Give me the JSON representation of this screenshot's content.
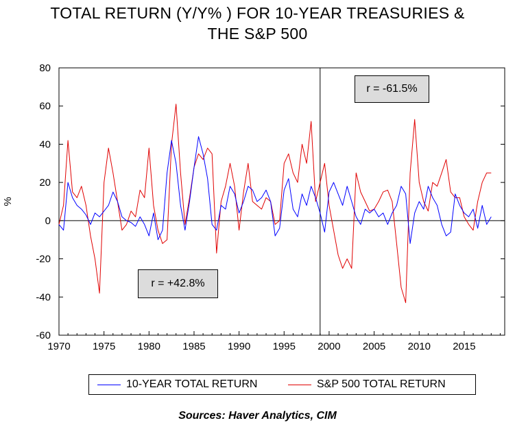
{
  "chart_data": {
    "type": "line",
    "title_line1": "TOTAL RETURN (Y/Y% ) FOR 10-YEAR TREASURIES &",
    "title_line2": "THE S&P 500",
    "ylabel": "%",
    "ylim": [
      -60,
      80
    ],
    "xlim": [
      1970,
      2019.5
    ],
    "yticks": [
      80,
      60,
      40,
      20,
      0,
      -20,
      -40,
      -60
    ],
    "xticks": [
      1970,
      1975,
      1980,
      1985,
      1990,
      1995,
      2000,
      2005,
      2010,
      2015
    ],
    "vertical_line_x": 1999,
    "legend_position": "bottom",
    "annotations": [
      {
        "text": "r = -61.5%"
      },
      {
        "text": "r = +42.8%"
      }
    ],
    "source": "Sources:  Haver Analytics, CIM",
    "series": [
      {
        "name": "10-YEAR TOTAL RETURN",
        "color": "#0000ff",
        "x": [
          1970.0,
          1970.5,
          1971.0,
          1971.5,
          1972.0,
          1972.5,
          1973.0,
          1973.5,
          1974.0,
          1974.5,
          1975.0,
          1975.5,
          1976.0,
          1976.5,
          1977.0,
          1977.5,
          1978.0,
          1978.5,
          1979.0,
          1979.5,
          1980.0,
          1980.5,
          1981.0,
          1981.5,
          1982.0,
          1982.5,
          1983.0,
          1983.5,
          1984.0,
          1984.5,
          1985.0,
          1985.5,
          1986.0,
          1986.5,
          1987.0,
          1987.5,
          1988.0,
          1988.5,
          1989.0,
          1989.5,
          1990.0,
          1990.5,
          1991.0,
          1991.5,
          1992.0,
          1992.5,
          1993.0,
          1993.5,
          1994.0,
          1994.5,
          1995.0,
          1995.5,
          1996.0,
          1996.5,
          1997.0,
          1997.5,
          1998.0,
          1998.5,
          1999.0,
          1999.5,
          2000.0,
          2000.5,
          2001.0,
          2001.5,
          2002.0,
          2002.5,
          2003.0,
          2003.5,
          2004.0,
          2004.5,
          2005.0,
          2005.5,
          2006.0,
          2006.5,
          2007.0,
          2007.5,
          2008.0,
          2008.5,
          2009.0,
          2009.5,
          2010.0,
          2010.5,
          2011.0,
          2011.5,
          2012.0,
          2012.5,
          2013.0,
          2013.5,
          2014.0,
          2014.5,
          2015.0,
          2015.5,
          2016.0,
          2016.5,
          2017.0,
          2017.5,
          2018.0
        ],
        "values": [
          -2,
          -5,
          20,
          12,
          8,
          6,
          3,
          -2,
          4,
          2,
          5,
          8,
          15,
          10,
          2,
          0,
          -1,
          -3,
          2,
          -2,
          -8,
          4,
          -10,
          -5,
          25,
          42,
          30,
          8,
          -5,
          10,
          28,
          44,
          35,
          22,
          -2,
          -5,
          8,
          6,
          18,
          14,
          4,
          10,
          18,
          16,
          10,
          12,
          16,
          10,
          -8,
          -4,
          16,
          22,
          6,
          2,
          14,
          8,
          18,
          12,
          4,
          -6,
          15,
          20,
          14,
          8,
          18,
          10,
          2,
          -2,
          6,
          4,
          6,
          2,
          4,
          -2,
          4,
          8,
          18,
          14,
          -12,
          4,
          10,
          6,
          18,
          12,
          8,
          -2,
          -8,
          -6,
          14,
          8,
          4,
          2,
          6,
          -4,
          8,
          -2,
          2
        ]
      },
      {
        "name": "S&P 500 TOTAL RETURN",
        "color": "#e00000",
        "x": [
          1970.0,
          1970.5,
          1971.0,
          1971.5,
          1972.0,
          1972.5,
          1973.0,
          1973.5,
          1974.0,
          1974.5,
          1975.0,
          1975.5,
          1976.0,
          1976.5,
          1977.0,
          1977.5,
          1978.0,
          1978.5,
          1979.0,
          1979.5,
          1980.0,
          1980.5,
          1981.0,
          1981.5,
          1982.0,
          1982.5,
          1983.0,
          1983.5,
          1984.0,
          1984.5,
          1985.0,
          1985.5,
          1986.0,
          1986.5,
          1987.0,
          1987.5,
          1988.0,
          1988.5,
          1989.0,
          1989.5,
          1990.0,
          1990.5,
          1991.0,
          1991.5,
          1992.0,
          1992.5,
          1993.0,
          1993.5,
          1994.0,
          1994.5,
          1995.0,
          1995.5,
          1996.0,
          1996.5,
          1997.0,
          1997.5,
          1998.0,
          1998.5,
          1999.0,
          1999.5,
          2000.0,
          2000.5,
          2001.0,
          2001.5,
          2002.0,
          2002.5,
          2003.0,
          2003.5,
          2004.0,
          2004.5,
          2005.0,
          2005.5,
          2006.0,
          2006.5,
          2007.0,
          2007.5,
          2008.0,
          2008.5,
          2009.0,
          2009.5,
          2010.0,
          2010.5,
          2011.0,
          2011.5,
          2012.0,
          2012.5,
          2013.0,
          2013.5,
          2014.0,
          2014.5,
          2015.0,
          2015.5,
          2016.0,
          2016.5,
          2017.0,
          2017.5,
          2018.0
        ],
        "values": [
          -2,
          8,
          42,
          15,
          12,
          18,
          8,
          -8,
          -20,
          -38,
          20,
          38,
          25,
          10,
          -5,
          -2,
          5,
          2,
          16,
          12,
          38,
          8,
          -5,
          -12,
          -10,
          40,
          61,
          25,
          -2,
          12,
          28,
          35,
          32,
          38,
          35,
          -17,
          10,
          18,
          30,
          18,
          -5,
          15,
          30,
          10,
          8,
          6,
          12,
          10,
          -2,
          0,
          30,
          35,
          25,
          20,
          40,
          30,
          52,
          10,
          20,
          30,
          8,
          -5,
          -18,
          -25,
          -20,
          -25,
          25,
          15,
          10,
          5,
          6,
          10,
          15,
          16,
          10,
          -12,
          -35,
          -43,
          25,
          53,
          20,
          10,
          5,
          20,
          18,
          25,
          32,
          15,
          12,
          12,
          2,
          -2,
          -5,
          10,
          20,
          25,
          25
        ]
      }
    ]
  }
}
